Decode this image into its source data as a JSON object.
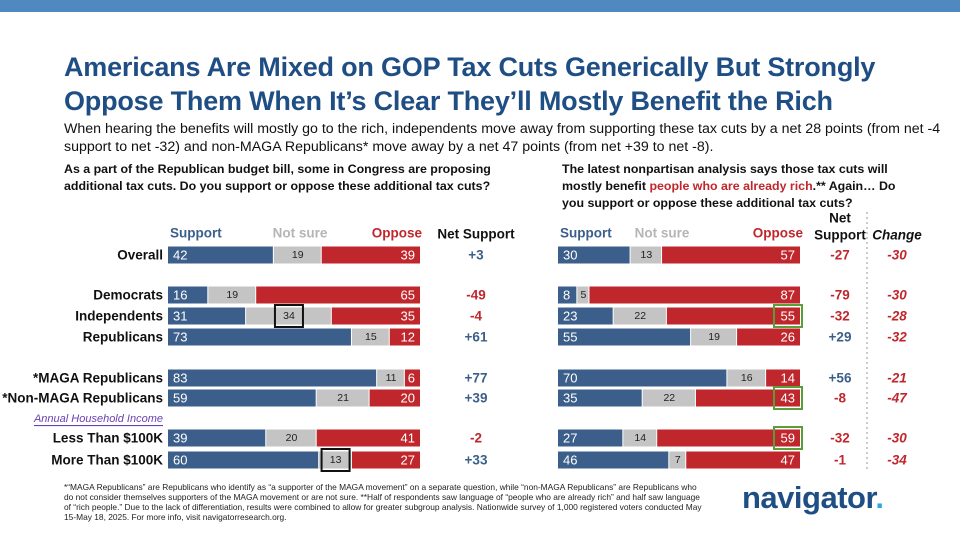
{
  "title": "Americans Are Mixed on GOP Tax Cuts Generically But Strongly Oppose Them When It’s Clear They’ll Mostly Benefit the Rich",
  "subtitle": "When hearing the benefits will mostly go to the rich, independents move away from supporting these tax cuts by a net 28 points (from net -4 support to net -32) and non-MAGA Republicans* move away by a net 47 points (from net +39 to net -8).",
  "left_question": "As a part of the Republican budget bill, some in Congress are proposing additional tax cuts. Do you support or oppose these additional tax cuts?",
  "right_question": {
    "before": "The latest nonpartisan analysis says those tax cuts will mostly benefit ",
    "highlight": "people who are already rich",
    "after": ".** Again… Do you support or oppose these additional tax cuts?"
  },
  "footnote": "*“MAGA Republicans” are Republicans who identify as “a supporter of the MAGA movement” on a separate question, while “non-MAGA Republicans” are Republicans who do not consider themselves supporters of the MAGA movement or are not sure. **Half of respondents saw language of “people who are already rich” and half saw language of “rich people.” Due to the lack of differentiation, results were combined to allow for greater subgroup analysis. Nationwide survey of 1,000 registered voters conducted May 15-May 18, 2025. For more info, visit navigatorresearch.org.",
  "logo": {
    "text": "navigator",
    "dot": "."
  },
  "colors": {
    "support": "#3b5f8a",
    "not_sure": "#c4c4c4",
    "oppose": "#c0272d",
    "title": "#1f4e84",
    "box_black": "#111111",
    "box_green": "#5a9e3a",
    "subgroup_label": "#6a3fb0"
  },
  "chart_data": {
    "type": "bar",
    "stacked": true,
    "orientation": "horizontal",
    "legend": [
      "Support",
      "Not sure",
      "Oppose"
    ],
    "net_header": "Net Support",
    "net_header_right": [
      "Net",
      "Support"
    ],
    "change_header": "Change",
    "subgroup_heading": "Annual Household Income",
    "categories": [
      "Overall",
      "Democrats",
      "Independents",
      "Republicans",
      "*MAGA Republicans",
      "*Non-MAGA Republicans",
      "Less Than $100K",
      "More Than $100K"
    ],
    "left": {
      "support": [
        42,
        16,
        31,
        73,
        83,
        59,
        39,
        60
      ],
      "not_sure": [
        19,
        19,
        34,
        15,
        11,
        21,
        20,
        13
      ],
      "oppose": [
        39,
        65,
        35,
        12,
        6,
        20,
        41,
        27
      ],
      "net": [
        "+3",
        "-49",
        "-4",
        "+61",
        "+77",
        "+39",
        "-2",
        "+33"
      ],
      "boxed": [
        {
          "row": 2,
          "segment": "not_sure"
        },
        {
          "row": 7,
          "segment": "not_sure"
        }
      ]
    },
    "right": {
      "support": [
        30,
        8,
        23,
        55,
        70,
        35,
        27,
        46
      ],
      "not_sure": [
        13,
        5,
        22,
        19,
        16,
        22,
        14,
        7
      ],
      "oppose": [
        57,
        87,
        55,
        26,
        14,
        43,
        59,
        47
      ],
      "net": [
        "-27",
        "-79",
        "-32",
        "+29",
        "+56",
        "-8",
        "-32",
        "-1"
      ],
      "change": [
        "-30",
        "-30",
        "-28",
        "-32",
        "-21",
        "-47",
        "-30",
        "-34"
      ],
      "boxed": [
        {
          "row": 2,
          "segment": "oppose"
        },
        {
          "row": 5,
          "segment": "oppose"
        },
        {
          "row": 6,
          "segment": "oppose"
        }
      ]
    }
  }
}
